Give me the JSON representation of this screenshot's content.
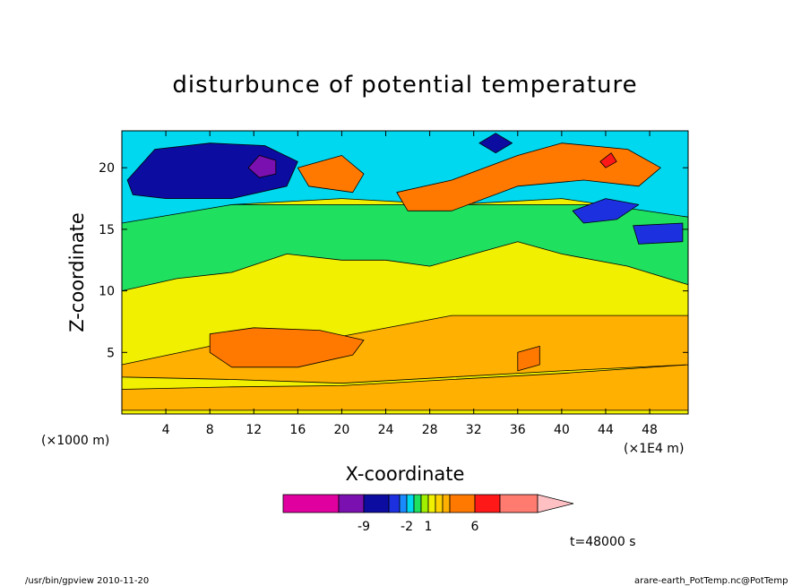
{
  "chart_data": {
    "type": "heatmap",
    "title": "disturbunce of potential temperature",
    "xlabel": "X-coordinate",
    "ylabel": "Z-coordinate",
    "x_unit_left": "(×1000 m)",
    "x_unit_right": "(×1E4 m)",
    "xlim": [
      0,
      51.5
    ],
    "ylim": [
      0,
      23
    ],
    "x_ticks": [
      4,
      8,
      12,
      16,
      20,
      24,
      28,
      32,
      36,
      40,
      44,
      48
    ],
    "y_ticks": [
      5,
      10,
      15,
      20
    ],
    "colorbar": {
      "colors": [
        "#e000a0",
        "#7a10b0",
        "#0c0ca0",
        "#1c30e0",
        "#1a8aff",
        "#00d8f0",
        "#20e060",
        "#a0f000",
        "#f0f000",
        "#ffd200",
        "#ffb000",
        "#ff7800",
        "#ff1818",
        "#ff7b70",
        "#ffc0c4"
      ],
      "labels": [
        "-9",
        "-2",
        "1",
        "6"
      ]
    },
    "annotation": "t=48000 s",
    "regions": [
      {
        "color": "#ffb000",
        "points": [
          [
            0,
            0.3
          ],
          [
            51.5,
            0.3
          ],
          [
            51.5,
            4
          ],
          [
            40,
            3.3
          ],
          [
            30,
            2.8
          ],
          [
            20,
            2.3
          ],
          [
            10,
            2.2
          ],
          [
            0,
            2
          ]
        ]
      },
      {
        "color": "#ffb000",
        "points": [
          [
            0,
            4
          ],
          [
            8,
            5.5
          ],
          [
            20,
            6.3
          ],
          [
            30,
            8
          ],
          [
            40,
            8
          ],
          [
            51.5,
            8
          ],
          [
            51.5,
            4
          ],
          [
            40,
            3.5
          ],
          [
            30,
            3
          ],
          [
            20,
            2.5
          ],
          [
            10,
            2.8
          ],
          [
            0,
            3
          ]
        ]
      },
      {
        "color": "#ff7800",
        "points": [
          [
            8,
            6.5
          ],
          [
            12,
            7
          ],
          [
            18,
            6.8
          ],
          [
            22,
            6
          ],
          [
            21,
            4.8
          ],
          [
            16,
            3.8
          ],
          [
            10,
            3.8
          ],
          [
            8,
            5
          ]
        ]
      },
      {
        "color": "#ff7800",
        "points": [
          [
            36,
            5
          ],
          [
            38,
            5.5
          ],
          [
            38,
            4
          ],
          [
            36,
            3.5
          ]
        ]
      },
      {
        "color": "#20e060",
        "points": [
          [
            0,
            10
          ],
          [
            5,
            11
          ],
          [
            10,
            11.5
          ],
          [
            15,
            13
          ],
          [
            20,
            12.5
          ],
          [
            24,
            12.5
          ],
          [
            28,
            12
          ],
          [
            32,
            13
          ],
          [
            36,
            14
          ],
          [
            40,
            13
          ],
          [
            46,
            12
          ],
          [
            51.5,
            10.5
          ],
          [
            51.5,
            17
          ],
          [
            0,
            17
          ]
        ]
      },
      {
        "color": "#00d8f0",
        "points": [
          [
            0,
            15.5
          ],
          [
            10,
            17
          ],
          [
            20,
            17.5
          ],
          [
            30,
            17
          ],
          [
            40,
            17.5
          ],
          [
            51.5,
            16
          ],
          [
            51.5,
            23
          ],
          [
            0,
            23
          ]
        ]
      },
      {
        "color": "#0c0ca0",
        "points": [
          [
            0.5,
            19
          ],
          [
            3,
            21.5
          ],
          [
            8,
            22
          ],
          [
            13,
            21.8
          ],
          [
            16,
            20.5
          ],
          [
            15,
            18.5
          ],
          [
            10,
            17.5
          ],
          [
            4,
            17.5
          ],
          [
            1,
            17.8
          ]
        ]
      },
      {
        "color": "#7a10b0",
        "points": [
          [
            11.5,
            20
          ],
          [
            12.5,
            21
          ],
          [
            14,
            20.6
          ],
          [
            14,
            19.5
          ],
          [
            12.5,
            19.2
          ]
        ]
      },
      {
        "color": "#ff7800",
        "points": [
          [
            16,
            20
          ],
          [
            20,
            21
          ],
          [
            22,
            19.5
          ],
          [
            21,
            18
          ],
          [
            17,
            18.5
          ]
        ]
      },
      {
        "color": "#ff7800",
        "points": [
          [
            25,
            18
          ],
          [
            30,
            19
          ],
          [
            36,
            21
          ],
          [
            40,
            22
          ],
          [
            46,
            21.5
          ],
          [
            49,
            20
          ],
          [
            47,
            18.5
          ],
          [
            42,
            19
          ],
          [
            36,
            18.5
          ],
          [
            30,
            16.5
          ],
          [
            26,
            16.5
          ]
        ]
      },
      {
        "color": "#ff1818",
        "points": [
          [
            43.5,
            20.5
          ],
          [
            44.5,
            21.2
          ],
          [
            45,
            20.5
          ],
          [
            44,
            20
          ]
        ]
      },
      {
        "color": "#0c0ca0",
        "points": [
          [
            32.5,
            22
          ],
          [
            34,
            22.8
          ],
          [
            35.5,
            22
          ],
          [
            34,
            21.2
          ]
        ]
      },
      {
        "color": "#1c30e0",
        "points": [
          [
            41,
            16.5
          ],
          [
            44,
            17.5
          ],
          [
            47,
            17
          ],
          [
            45,
            15.8
          ],
          [
            42,
            15.5
          ]
        ]
      },
      {
        "color": "#1c30e0",
        "points": [
          [
            46.5,
            15.3
          ],
          [
            51,
            15.5
          ],
          [
            51,
            14
          ],
          [
            47,
            13.8
          ]
        ]
      }
    ]
  },
  "footer": {
    "left": "/usr/bin/gpview   2010-11-20",
    "right": "arare-earth_PotTemp.nc@PotTemp"
  }
}
